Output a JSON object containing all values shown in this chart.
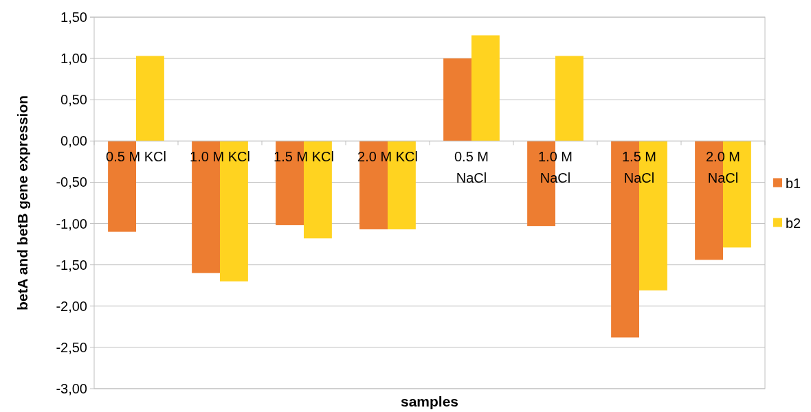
{
  "chart_data": {
    "type": "bar",
    "xlabel": "samples",
    "ylabel": "betA and betB gene expression",
    "categories": [
      "0.5 M KCl",
      "1.0 M KCl",
      "1.5 M KCl",
      "2.0 M KCl",
      "0.5 M NaCl",
      "1.0 M NaCl",
      "1.5 M NaCl",
      "2.0 M NaCl"
    ],
    "series": [
      {
        "name": "b1",
        "color": "#ed7d31",
        "values": [
          -1.1,
          -1.6,
          -1.02,
          -1.07,
          1.0,
          -1.03,
          -2.38,
          -1.44
        ]
      },
      {
        "name": "b2",
        "color": "#ffd320",
        "values": [
          1.03,
          -1.7,
          -1.18,
          -1.07,
          1.28,
          1.03,
          -1.81,
          -1.29
        ]
      }
    ],
    "ylim": [
      -3,
      1.5
    ],
    "yticks": [
      {
        "value": -3,
        "label": "-3,00"
      },
      {
        "value": -2.5,
        "label": "-2,50"
      },
      {
        "value": -2,
        "label": "-2,00"
      },
      {
        "value": -1.5,
        "label": "-1,50"
      },
      {
        "value": -1,
        "label": "-1,00"
      },
      {
        "value": -0.5,
        "label": "-0,50"
      },
      {
        "value": 0,
        "label": "0,00"
      },
      {
        "value": 0.5,
        "label": "0,50"
      },
      {
        "value": 1,
        "label": "1,00"
      },
      {
        "value": 1.5,
        "label": "1,50"
      }
    ],
    "grid": "y",
    "legend": "right"
  }
}
